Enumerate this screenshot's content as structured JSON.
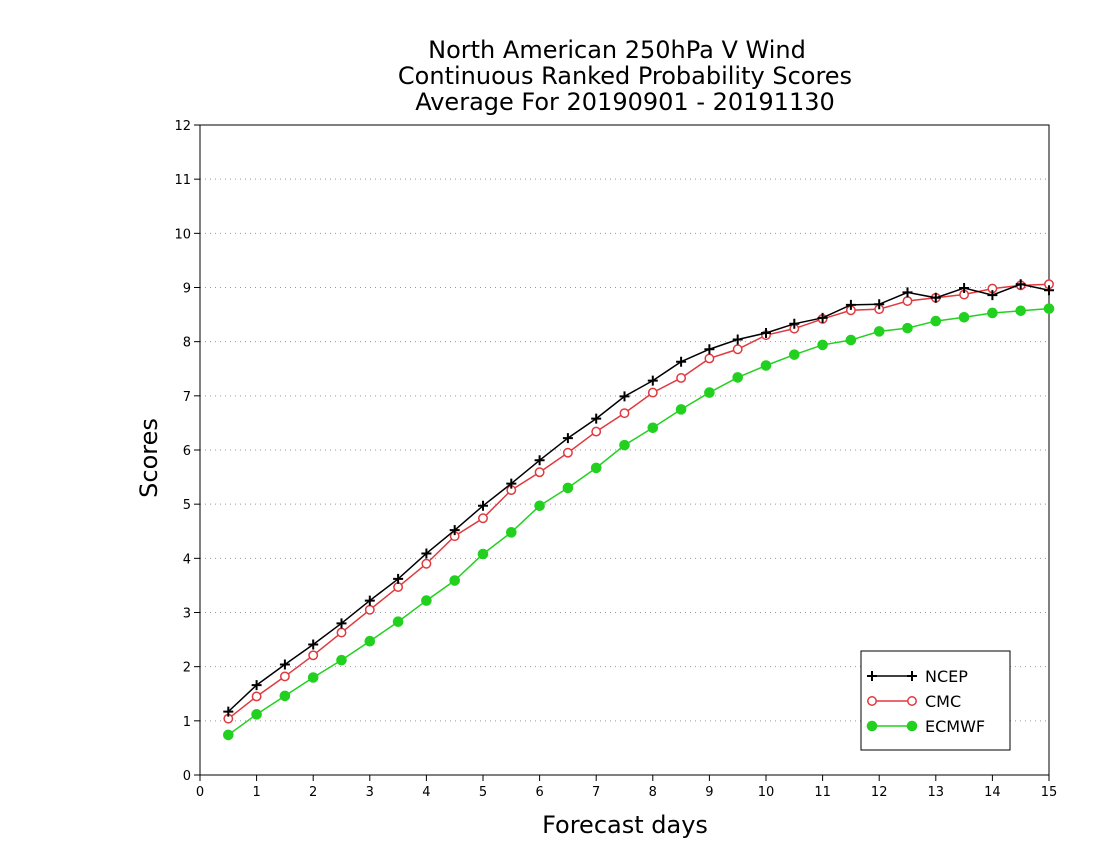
{
  "chart_data": {
    "type": "line",
    "title": [
      "North American 250hPa V Wind",
      "Continuous Ranked Probability Scores",
      "Average For 20190901 - 20191130"
    ],
    "xlabel": "Forecast days",
    "ylabel": "Scores",
    "xlim": [
      0,
      15
    ],
    "ylim": [
      0,
      12
    ],
    "x_ticks": [
      "0",
      "1",
      "2",
      "3",
      "4",
      "5",
      "6",
      "7",
      "8",
      "9",
      "10",
      "11",
      "12",
      "13",
      "14",
      "15"
    ],
    "y_ticks": [
      "0",
      "1",
      "2",
      "3",
      "4",
      "5",
      "6",
      "7",
      "8",
      "9",
      "10",
      "11",
      "12"
    ],
    "grid": "horizontal dotted",
    "legend_position": "bottom-right",
    "x": [
      0.5,
      1,
      1.5,
      2,
      2.5,
      3,
      3.5,
      4,
      4.5,
      5,
      5.5,
      6,
      6.5,
      7,
      7.5,
      8,
      8.5,
      9,
      9.5,
      10,
      10.5,
      11,
      11.5,
      12,
      12.5,
      13,
      13.5,
      14,
      14.5,
      15
    ],
    "series": [
      {
        "name": "NCEP",
        "color": "#000000",
        "marker": "plus",
        "values": [
          1.17,
          1.66,
          2.04,
          2.41,
          2.8,
          3.22,
          3.62,
          4.09,
          4.52,
          4.97,
          5.38,
          5.81,
          6.22,
          6.58,
          6.99,
          7.28,
          7.63,
          7.86,
          8.04,
          8.16,
          8.33,
          8.44,
          8.68,
          8.69,
          8.91,
          8.81,
          8.99,
          8.86,
          9.06,
          8.95
        ]
      },
      {
        "name": "CMC",
        "color": "#e0393e",
        "marker": "open-circle",
        "values": [
          1.04,
          1.45,
          1.82,
          2.21,
          2.63,
          3.05,
          3.47,
          3.9,
          4.41,
          4.74,
          5.26,
          5.59,
          5.95,
          6.34,
          6.68,
          7.06,
          7.33,
          7.69,
          7.86,
          8.12,
          8.24,
          8.42,
          8.58,
          8.6,
          8.75,
          8.81,
          8.87,
          8.98,
          9.04,
          9.06
        ]
      },
      {
        "name": "ECMWF",
        "color": "#22d11f",
        "marker": "filled-circle",
        "values": [
          0.74,
          1.12,
          1.46,
          1.8,
          2.12,
          2.47,
          2.83,
          3.22,
          3.59,
          4.08,
          4.48,
          4.97,
          5.3,
          5.67,
          6.09,
          6.41,
          6.75,
          7.06,
          7.34,
          7.56,
          7.76,
          7.94,
          8.03,
          8.19,
          8.25,
          8.38,
          8.45,
          8.53,
          8.57,
          8.61
        ]
      }
    ]
  }
}
